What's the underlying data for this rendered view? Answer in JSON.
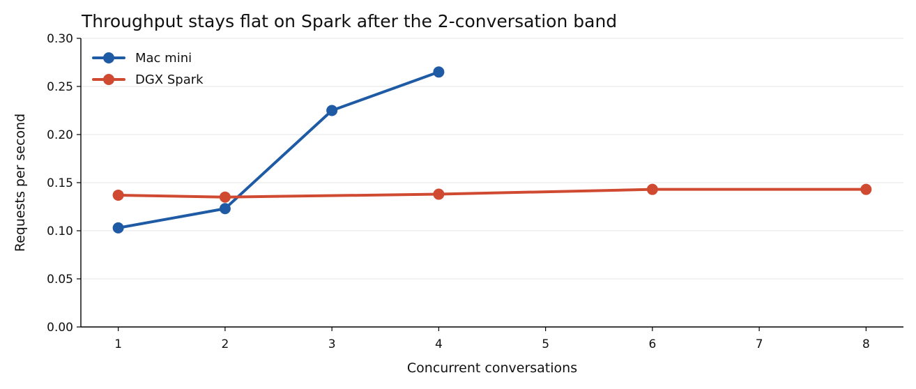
{
  "chart_data": {
    "type": "line",
    "title": "Throughput stays flat on Spark after the 2-conversation band",
    "xlabel": "Concurrent conversations",
    "ylabel": "Requests per second",
    "xlim": [
      0.65,
      8.35
    ],
    "ylim": [
      0,
      0.3
    ],
    "x_ticks": [
      1,
      2,
      3,
      4,
      5,
      6,
      7,
      8
    ],
    "y_ticks": [
      0.0,
      0.05,
      0.1,
      0.15,
      0.2,
      0.25,
      0.3
    ],
    "y_tick_labels": [
      "0.00",
      "0.05",
      "0.10",
      "0.15",
      "0.20",
      "0.25",
      "0.30"
    ],
    "grid": "horizontal",
    "legend_position": "top-left",
    "series": [
      {
        "name": "Mac mini",
        "color": "#1f5ba5",
        "x": [
          1,
          2,
          3,
          4
        ],
        "y": [
          0.103,
          0.123,
          0.225,
          0.265
        ]
      },
      {
        "name": "DGX Spark",
        "color": "#d04a32",
        "x": [
          1,
          2,
          4,
          6,
          8
        ],
        "y": [
          0.137,
          0.135,
          0.138,
          0.143,
          0.143
        ]
      }
    ]
  }
}
